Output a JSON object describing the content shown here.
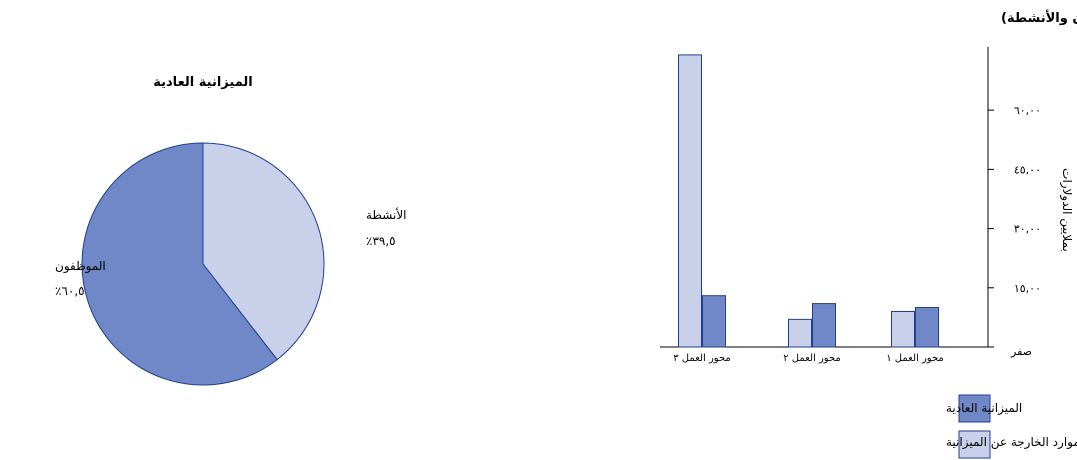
{
  "chart_data": [
    {
      "type": "pie",
      "title": "الميزانية العادية",
      "slices": [
        {
          "name": "الأنشطة",
          "percent_label": "٣٩,٥٪",
          "value": 39.5,
          "color": "#c8d0ea"
        },
        {
          "name": "الموظفون",
          "percent_label": "٦٠,٥٪",
          "value": 60.5,
          "color": "#7088c8"
        }
      ],
      "start_angle_deg": 0,
      "direction": "clockwise",
      "stroke_color": "#1f3f8f"
    },
    {
      "type": "bar",
      "title": "إجمالي الموارد (الموظفون والأنشطة)",
      "ylabel": "بملايين الدولارات",
      "categories": [
        "محور العمل ٣",
        "محور العمل ٢",
        "محور العمل ١"
      ],
      "series": [
        {
          "name": "الموارد الخارجة عن الميزانية",
          "values": [
            74,
            7,
            9
          ],
          "color": "#c8d0ea"
        },
        {
          "name": "الميزانية العادية",
          "values": [
            13,
            11,
            10
          ],
          "color": "#7088c8"
        }
      ],
      "ylim": [
        0,
        76
      ],
      "yticks": [
        0,
        15,
        30,
        45,
        60
      ],
      "ytick_labels": [
        "صفر",
        "١٥,٠٠",
        "٣٠,٠٠",
        "٤٥,٠٠",
        "٦٠,٠٠"
      ],
      "yaxis_side": "right",
      "grid": false,
      "legend_position": "bottom",
      "bar_stroke_color": "#1f3f8f"
    }
  ]
}
